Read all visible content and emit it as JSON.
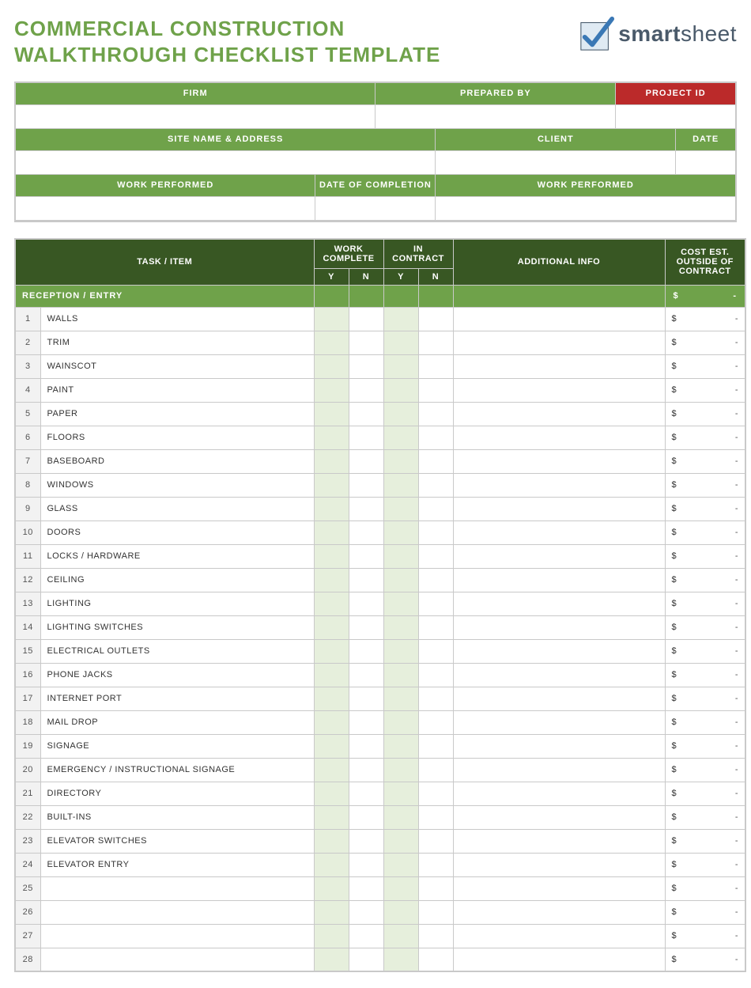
{
  "colors": {
    "title": "#6fa24a",
    "header_green": "#6fa24a",
    "header_dark_green": "#385723",
    "header_red": "#bb2a2a",
    "border": "#c9c9c9",
    "yn_y_bg": "#e6efdc",
    "num_bg": "#f2f2f2"
  },
  "title_line1": "COMMERCIAL CONSTRUCTION",
  "title_line2": "WALKTHROUGH CHECKLIST TEMPLATE",
  "logo_text_bold": "smart",
  "logo_text_rest": "sheet",
  "meta": {
    "r1": {
      "firm": "FIRM",
      "prepared_by": "PREPARED BY",
      "project_id": "PROJECT ID"
    },
    "r2": {
      "site": "SITE NAME & ADDRESS",
      "client": "CLIENT",
      "date": "DATE"
    },
    "r3": {
      "work1": "WORK PERFORMED",
      "doc": "DATE OF COMPLETION",
      "work2": "WORK PERFORMED"
    }
  },
  "columns": {
    "task": "TASK / ITEM",
    "wc": "WORK COMPLETE",
    "ic": "IN CONTRACT",
    "info": "ADDITIONAL INFO",
    "cost": "COST EST. OUTSIDE OF CONTRACT",
    "y": "Y",
    "n": "N"
  },
  "section": {
    "name": "RECEPTION / ENTRY",
    "currency": "$",
    "dash": "-"
  },
  "currency": "$",
  "dash": "-",
  "rows": [
    {
      "n": "1",
      "task": "WALLS"
    },
    {
      "n": "2",
      "task": "TRIM"
    },
    {
      "n": "3",
      "task": "WAINSCOT"
    },
    {
      "n": "4",
      "task": "PAINT"
    },
    {
      "n": "5",
      "task": "PAPER"
    },
    {
      "n": "6",
      "task": "FLOORS"
    },
    {
      "n": "7",
      "task": "BASEBOARD"
    },
    {
      "n": "8",
      "task": "WINDOWS"
    },
    {
      "n": "9",
      "task": "GLASS"
    },
    {
      "n": "10",
      "task": "DOORS"
    },
    {
      "n": "11",
      "task": "LOCKS / HARDWARE"
    },
    {
      "n": "12",
      "task": "CEILING"
    },
    {
      "n": "13",
      "task": "LIGHTING"
    },
    {
      "n": "14",
      "task": "LIGHTING SWITCHES"
    },
    {
      "n": "15",
      "task": "ELECTRICAL OUTLETS"
    },
    {
      "n": "16",
      "task": "PHONE JACKS"
    },
    {
      "n": "17",
      "task": "INTERNET PORT"
    },
    {
      "n": "18",
      "task": "MAIL DROP"
    },
    {
      "n": "19",
      "task": "SIGNAGE"
    },
    {
      "n": "20",
      "task": "EMERGENCY / INSTRUCTIONAL SIGNAGE"
    },
    {
      "n": "21",
      "task": "DIRECTORY"
    },
    {
      "n": "22",
      "task": "BUILT-INS"
    },
    {
      "n": "23",
      "task": "ELEVATOR SWITCHES"
    },
    {
      "n": "24",
      "task": "ELEVATOR ENTRY"
    },
    {
      "n": "25",
      "task": ""
    },
    {
      "n": "26",
      "task": ""
    },
    {
      "n": "27",
      "task": ""
    },
    {
      "n": "28",
      "task": ""
    }
  ]
}
